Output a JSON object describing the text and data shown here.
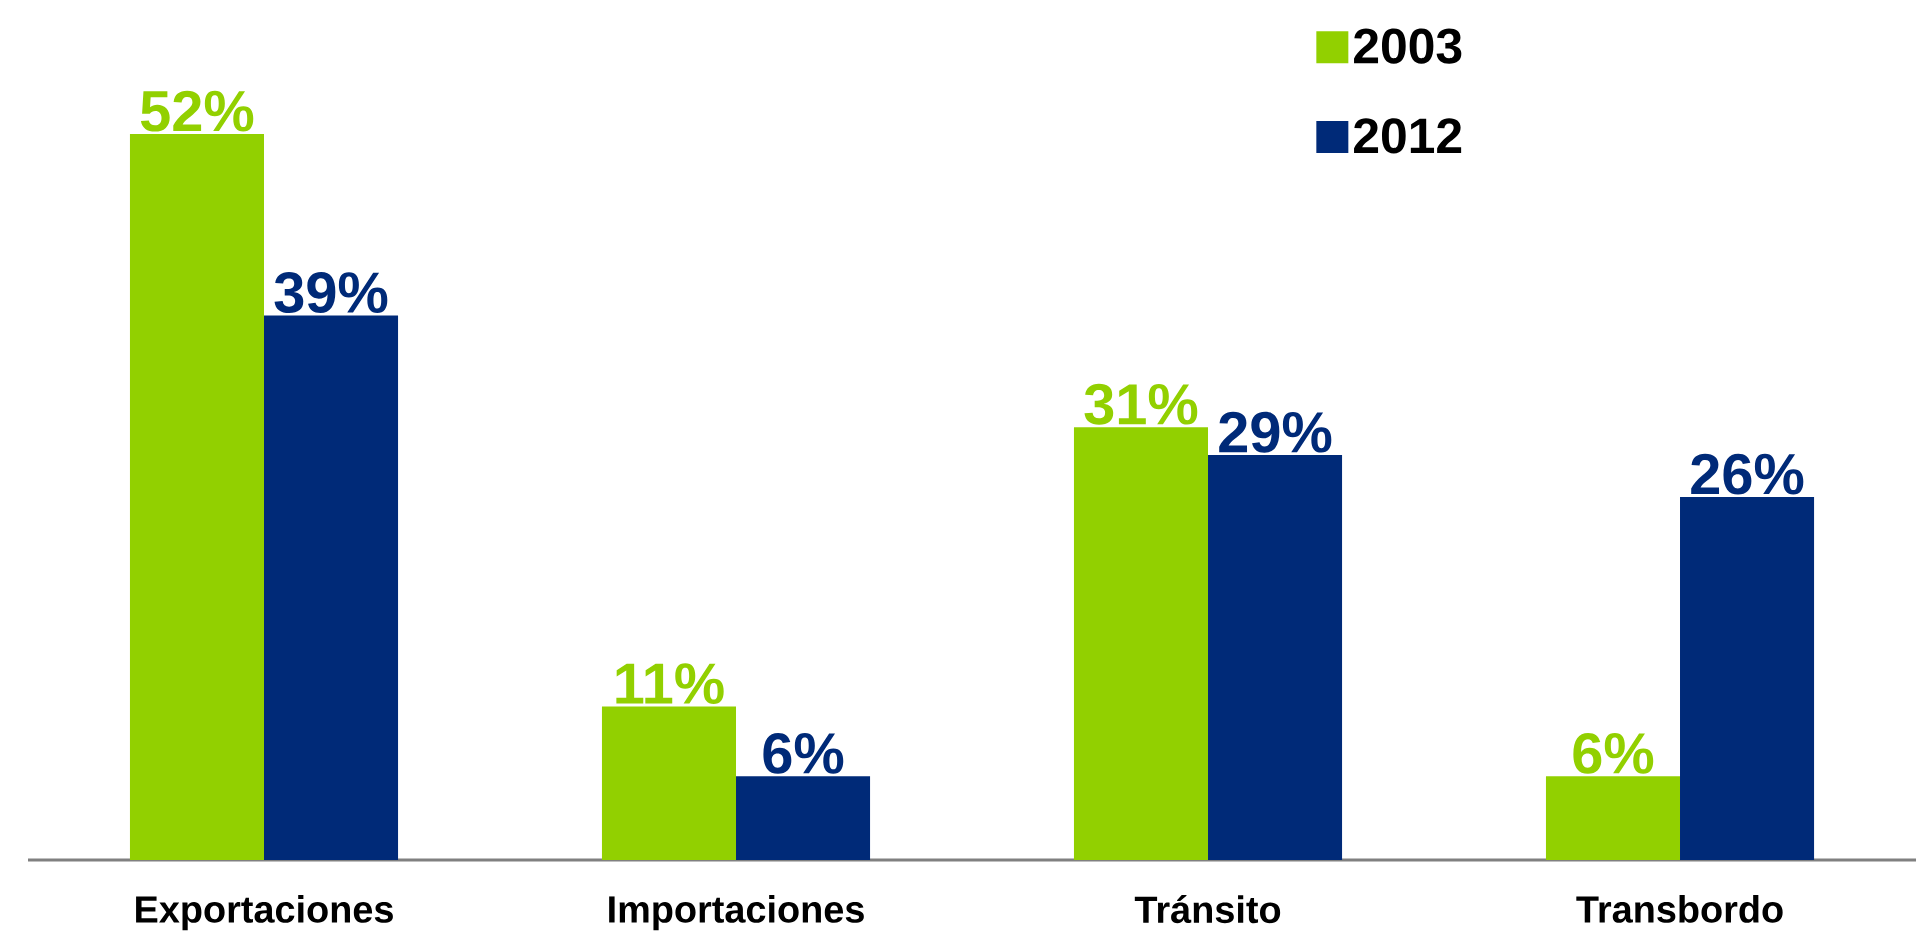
{
  "chart_data": {
    "type": "bar",
    "categories": [
      "Exportaciones",
      "Importaciones",
      "Tránsito",
      "Transbordo"
    ],
    "series": [
      {
        "name": "2003",
        "color": "#92d000",
        "values": [
          52,
          11,
          31,
          6
        ],
        "value_labels": [
          "52%",
          "11%",
          "31%",
          "6%"
        ]
      },
      {
        "name": "2012",
        "color": "#002a78",
        "values": [
          39,
          6,
          29,
          26
        ],
        "value_labels": [
          "39%",
          "6%",
          "29%",
          "26%"
        ]
      }
    ],
    "legend": "top right"
  }
}
